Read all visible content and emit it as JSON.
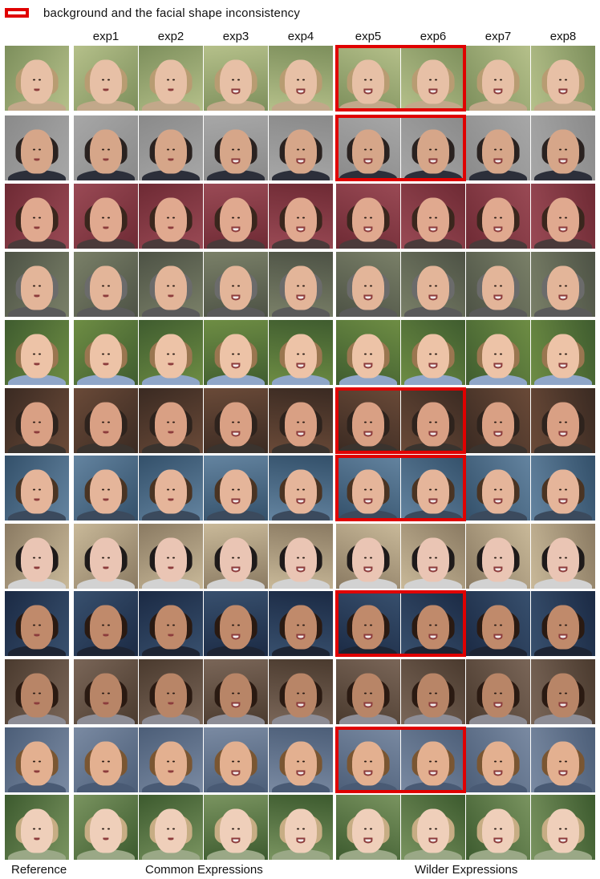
{
  "legend": {
    "text": "background and the facial shape inconsistency",
    "color": "#e00000"
  },
  "columns": [
    "exp1",
    "exp2",
    "exp3",
    "exp4",
    "exp5",
    "exp6",
    "exp7",
    "exp8"
  ],
  "footer": {
    "reference": "Reference",
    "common": "Common Expressions",
    "wilder": "Wilder Expressions"
  },
  "rows": [
    {
      "bg": [
        "#7d8f5c",
        "#b5c08a"
      ],
      "skin": "#e7c0a6",
      "hair": "#b89c72",
      "cloth": "#c2a88a",
      "highlight": true
    },
    {
      "bg": [
        "#8a8a8a",
        "#a7a7a7"
      ],
      "skin": "#d6a689",
      "hair": "#2a2220",
      "cloth": "#2c2f3a",
      "highlight": true
    },
    {
      "bg": [
        "#6e2a34",
        "#9a4a55"
      ],
      "skin": "#e0a98f",
      "hair": "#3a261d",
      "cloth": "#4a3a3a",
      "highlight": false
    },
    {
      "bg": [
        "#4d5245",
        "#7a8068"
      ],
      "skin": "#e3b599",
      "hair": "#6b6b6b",
      "cloth": "#5a5a5a",
      "highlight": false
    },
    {
      "bg": [
        "#3f5c2f",
        "#6e8d44"
      ],
      "skin": "#edc3a7",
      "hair": "#9a7650",
      "cloth": "#8fa6c8",
      "highlight": false
    },
    {
      "bg": [
        "#3a2a22",
        "#6a4a38"
      ],
      "skin": "#d9a084",
      "hair": "#2e231d",
      "cloth": "#3a332e",
      "highlight": true
    },
    {
      "bg": [
        "#33506a",
        "#6484a0"
      ],
      "skin": "#e5b59a",
      "hair": "#4a3423",
      "cloth": "#3b4a5d",
      "highlight": true
    },
    {
      "bg": [
        "#8a7a62",
        "#c9b999"
      ],
      "skin": "#eac5b4",
      "hair": "#1e1a1a",
      "cloth": "#d2d2d2",
      "highlight": false
    },
    {
      "bg": [
        "#1b2a44",
        "#38506e"
      ],
      "skin": "#c08a6b",
      "hair": "#2a1a12",
      "cloth": "#1d2433",
      "highlight": true
    },
    {
      "bg": [
        "#4a3a2e",
        "#7a6658"
      ],
      "skin": "#b88567",
      "hair": "#2a1a12",
      "cloth": "#8d8d96",
      "highlight": false
    },
    {
      "bg": [
        "#4c5e78",
        "#7a8aa2"
      ],
      "skin": "#e3b090",
      "hair": "#7a5632",
      "cloth": "#495a74",
      "highlight": true
    },
    {
      "bg": [
        "#3c5a2e",
        "#7a9460"
      ],
      "skin": "#efcfba",
      "hair": "#c7ad84",
      "cloth": "#9aa886",
      "highlight": false
    }
  ]
}
